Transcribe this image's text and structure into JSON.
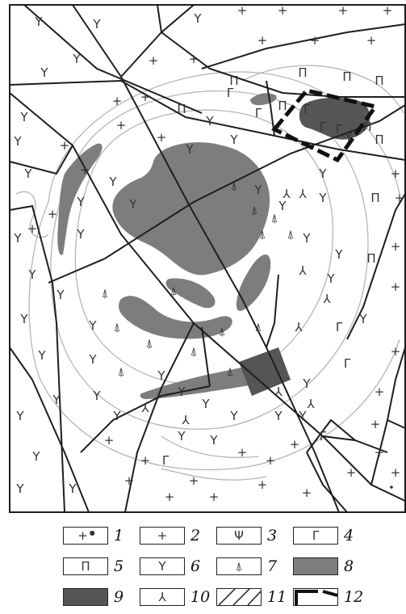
{
  "map": {
    "symbols": {
      "plus": "+",
      "fork": "Y",
      "pi": "Π",
      "gamma": "Γ",
      "lambda": "⅄",
      "arrow": "⍋",
      "plusdot": "+"
    },
    "colors": {
      "massif_light": "#7d7d7d",
      "massif_dark": "#555555",
      "faults": "#1e1e1e",
      "contours": "#b5b5b5"
    }
  },
  "legend": {
    "items": [
      {
        "num": "1",
        "symbol": "+",
        "dot": true
      },
      {
        "num": "2",
        "symbol": "+"
      },
      {
        "num": "3",
        "symbol": "Ψ"
      },
      {
        "num": "4",
        "symbol": "Γ"
      },
      {
        "num": "5",
        "symbol": "Π"
      },
      {
        "num": "6",
        "symbol": "Y"
      },
      {
        "num": "7",
        "symbol": "⍋"
      },
      {
        "num": "8",
        "fill": "#7d7d7d"
      },
      {
        "num": "9",
        "fill": "#555555"
      },
      {
        "num": "10",
        "symbol": "⅄"
      },
      {
        "num": "11",
        "hatch": true
      },
      {
        "num": "12",
        "dashed_corner": true
      }
    ]
  }
}
